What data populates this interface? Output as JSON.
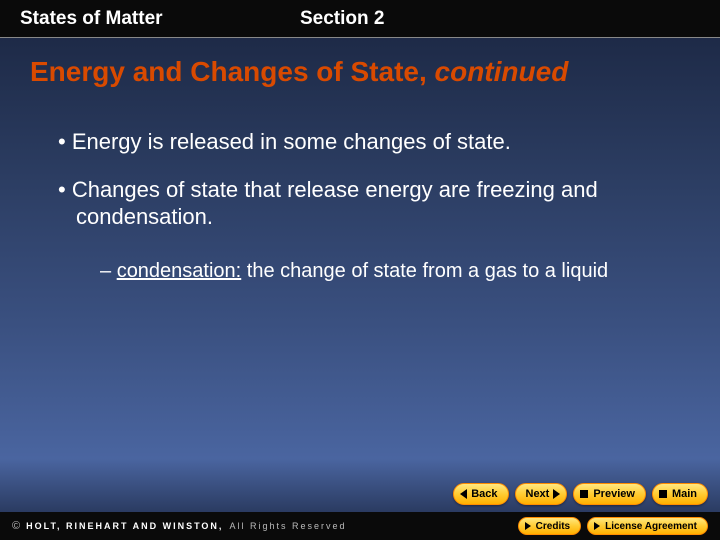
{
  "header": {
    "chapter": "States of Matter",
    "section": "Section 2"
  },
  "heading": {
    "main": "Energy and Changes of State, ",
    "continued": "continued"
  },
  "bullets": {
    "b1": "Energy is released in some changes of state.",
    "b2": "Changes of state that release energy are freezing and condensation.",
    "sub1_term": "condensation:",
    "sub1_rest": " the change of state from a gas to a liquid"
  },
  "nav": {
    "back": "Back",
    "next": "Next",
    "preview": "Preview",
    "main": "Main"
  },
  "footer": {
    "copyright_bold": "HOLT, RINEHART AND WINSTON,",
    "copyright_rest": "All Rights Reserved",
    "credits": "Credits",
    "license": "License Agreement"
  },
  "colors": {
    "heading": "#d94a00",
    "button_gradient_top": "#ffe880",
    "button_gradient_bot": "#ffb000",
    "bg_dark": "#1a2540"
  }
}
